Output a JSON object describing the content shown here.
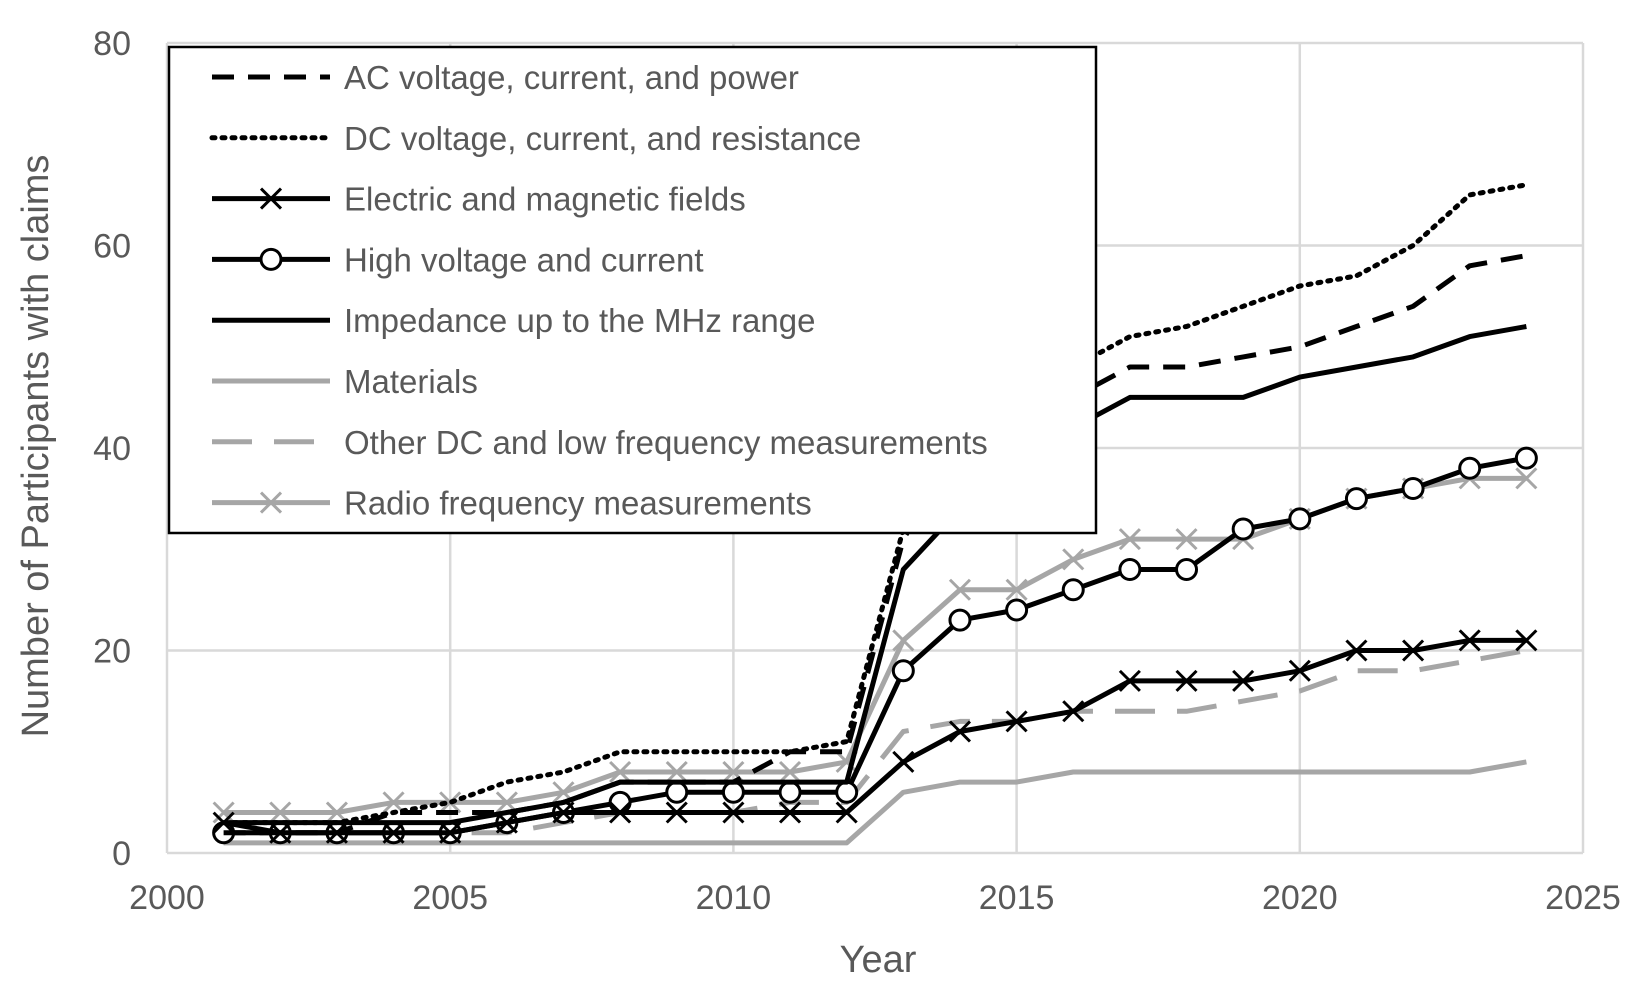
{
  "chart_data": {
    "type": "line",
    "title": "",
    "xlabel": "Year",
    "ylabel": "Number of Participants with claims",
    "xlim": [
      2000,
      2025
    ],
    "ylim": [
      0,
      80
    ],
    "x_ticks": [
      2000,
      2005,
      2010,
      2015,
      2020,
      2025
    ],
    "y_ticks": [
      0,
      20,
      40,
      60,
      80
    ],
    "grid": true,
    "legend_position": "top-left",
    "x": [
      2001,
      2002,
      2003,
      2004,
      2005,
      2006,
      2007,
      2008,
      2009,
      2010,
      2011,
      2012,
      2013,
      2014,
      2015,
      2016,
      2017,
      2018,
      2019,
      2020,
      2021,
      2022,
      2023,
      2024
    ],
    "series": [
      {
        "name": "AC voltage, current, and power",
        "color": "#000000",
        "dash": "dashed",
        "marker": "none",
        "values": [
          2,
          2,
          2,
          4,
          4,
          4,
          5,
          7,
          7,
          7,
          10,
          10,
          31,
          40,
          42,
          45,
          48,
          48,
          49,
          50,
          52,
          54,
          58,
          59
        ]
      },
      {
        "name": "DC voltage, current, and resistance",
        "color": "#000000",
        "dash": "dotted",
        "marker": "none",
        "values": [
          3,
          3,
          3,
          4,
          5,
          7,
          8,
          10,
          10,
          10,
          10,
          11,
          32,
          42,
          44,
          48,
          51,
          52,
          54,
          56,
          57,
          60,
          65,
          66
        ]
      },
      {
        "name": "Electric and magnetic fields",
        "color": "#000000",
        "dash": "solid",
        "marker": "x",
        "values": [
          3,
          2,
          2,
          2,
          2,
          3,
          4,
          4,
          4,
          4,
          4,
          4,
          9,
          12,
          13,
          14,
          17,
          17,
          17,
          18,
          20,
          20,
          21,
          21
        ]
      },
      {
        "name": "High voltage and current",
        "color": "#000000",
        "dash": "solid",
        "marker": "circle",
        "values": [
          2,
          2,
          2,
          2,
          2,
          3,
          4,
          5,
          6,
          6,
          6,
          6,
          18,
          23,
          24,
          26,
          28,
          28,
          32,
          33,
          35,
          36,
          38,
          39
        ]
      },
      {
        "name": "Impedance up to the MHz range",
        "color": "#000000",
        "dash": "solid",
        "marker": "none",
        "values": [
          3,
          3,
          3,
          3,
          3,
          4,
          5,
          7,
          7,
          7,
          7,
          7,
          28,
          34,
          38,
          42,
          45,
          45,
          45,
          47,
          48,
          49,
          51,
          52
        ]
      },
      {
        "name": "Materials",
        "color": "#a6a6a6",
        "dash": "solid",
        "marker": "none",
        "values": [
          1,
          1,
          1,
          1,
          1,
          1,
          1,
          1,
          1,
          1,
          1,
          1,
          6,
          7,
          7,
          8,
          8,
          8,
          8,
          8,
          8,
          8,
          8,
          9
        ]
      },
      {
        "name": "Other DC and low frequency measurements",
        "color": "#a6a6a6",
        "dash": "longdash",
        "marker": "none",
        "values": [
          2,
          2,
          2,
          2,
          2,
          2,
          3,
          4,
          4,
          4,
          5,
          5,
          12,
          13,
          13,
          14,
          14,
          14,
          15,
          16,
          18,
          18,
          19,
          20
        ]
      },
      {
        "name": "Radio frequency measurements",
        "color": "#a6a6a6",
        "dash": "solid",
        "marker": "x",
        "values": [
          4,
          4,
          4,
          5,
          5,
          5,
          6,
          8,
          8,
          8,
          8,
          9,
          21,
          26,
          26,
          29,
          31,
          31,
          31,
          33,
          35,
          36,
          37,
          37
        ]
      }
    ]
  }
}
